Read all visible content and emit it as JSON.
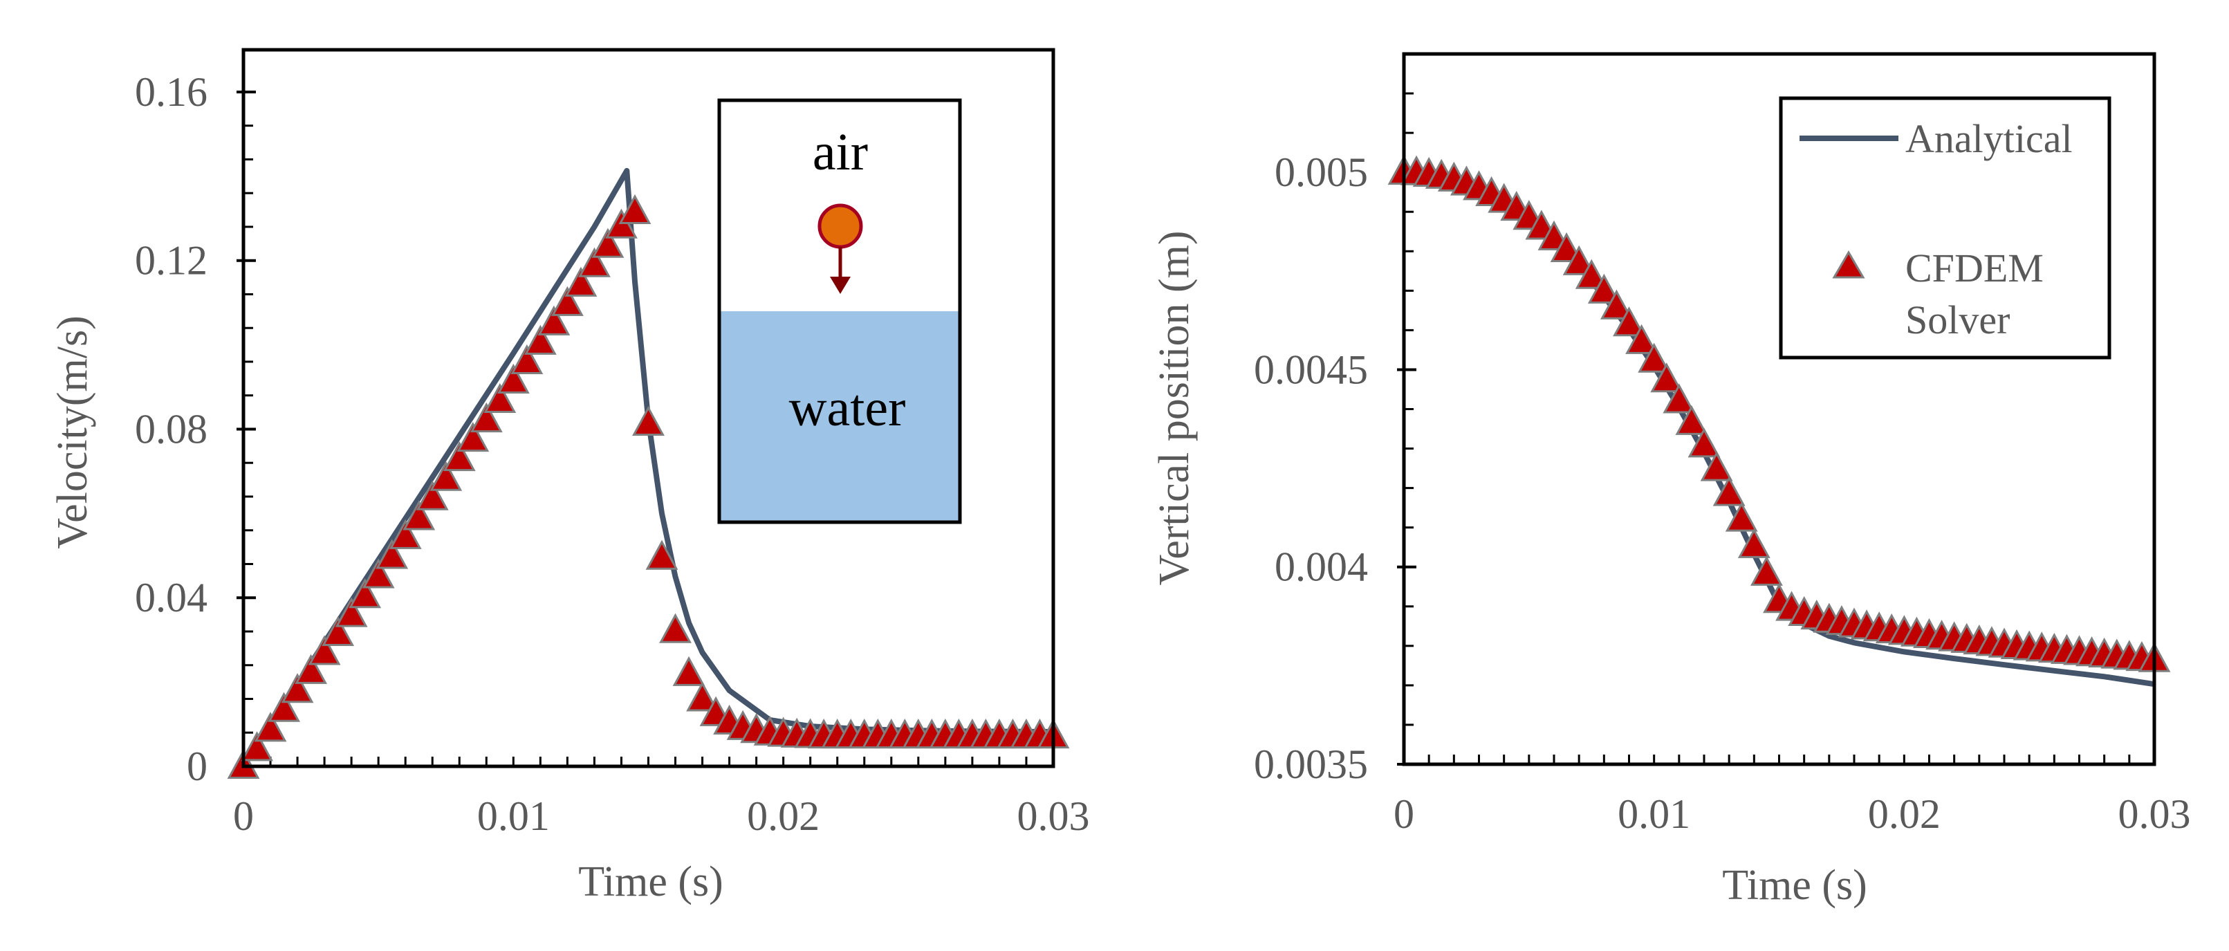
{
  "colors": {
    "analytical_line": "#44546a",
    "marker_fill": "#c00000",
    "marker_stroke": "#7f7f7f",
    "axis_frame": "#000000",
    "water": "#9dc3e6",
    "ball_fill": "#e36c09",
    "ball_stroke": "#c00000",
    "arrow": "#7f0000"
  },
  "chart_data": [
    {
      "id": "velocity",
      "type": "line+scatter",
      "xlabel": "Time (s)",
      "ylabel": "Velocity(m/s)",
      "xlim": [
        0,
        0.03
      ],
      "ylim": [
        0,
        0.17
      ],
      "xticks": [
        0,
        0.01,
        0.02,
        0.03
      ],
      "xtick_labels": [
        "0",
        "0.01",
        "0.02",
        "0.03"
      ],
      "yticks": [
        0,
        0.04,
        0.08,
        0.12,
        0.16
      ],
      "ytick_labels": [
        "0",
        "0.04",
        "0.08",
        "0.12",
        "0.16"
      ],
      "x_minor_step": 0.001,
      "y_minor_step": 0.008,
      "series": [
        {
          "name": "Analytical",
          "kind": "line",
          "x": [
            0,
            0.002,
            0.004,
            0.006,
            0.008,
            0.01,
            0.011,
            0.012,
            0.013,
            0.0142,
            0.0145,
            0.015,
            0.0155,
            0.016,
            0.0165,
            0.017,
            0.018,
            0.0195,
            0.021,
            0.023,
            0.025,
            0.027,
            0.03
          ],
          "y": [
            0,
            0.0196,
            0.0392,
            0.0588,
            0.0784,
            0.098,
            0.108,
            0.118,
            0.128,
            0.1413,
            0.115,
            0.082,
            0.06,
            0.045,
            0.034,
            0.027,
            0.018,
            0.011,
            0.0095,
            0.0088,
            0.0085,
            0.0083,
            0.0082
          ]
        },
        {
          "name": "CFDEM Solver",
          "kind": "marker",
          "x": [
            0,
            0.0005,
            0.001,
            0.0015,
            0.002,
            0.0025,
            0.003,
            0.0035,
            0.004,
            0.0045,
            0.005,
            0.0055,
            0.006,
            0.0065,
            0.007,
            0.0075,
            0.008,
            0.0085,
            0.009,
            0.0095,
            0.01,
            0.0105,
            0.011,
            0.0115,
            0.012,
            0.0125,
            0.013,
            0.0135,
            0.014,
            0.0145,
            0.015,
            0.0155,
            0.016,
            0.0165,
            0.017,
            0.0175,
            0.018,
            0.0185,
            0.019,
            0.0195,
            0.02,
            0.0205,
            0.021,
            0.0215,
            0.022,
            0.0225,
            0.023,
            0.0235,
            0.024,
            0.0245,
            0.025,
            0.0255,
            0.026,
            0.0265,
            0.027,
            0.0275,
            0.028,
            0.0285,
            0.029,
            0.0295,
            0.03
          ],
          "y": [
            0,
            0.0042,
            0.0088,
            0.0135,
            0.018,
            0.0225,
            0.027,
            0.0315,
            0.036,
            0.0405,
            0.0452,
            0.0498,
            0.0545,
            0.059,
            0.0637,
            0.0683,
            0.073,
            0.0776,
            0.0822,
            0.0868,
            0.0914,
            0.096,
            0.1006,
            0.1052,
            0.1098,
            0.1144,
            0.119,
            0.1236,
            0.1282,
            0.1316,
            0.0814,
            0.0496,
            0.0322,
            0.022,
            0.016,
            0.0125,
            0.0105,
            0.0092,
            0.0085,
            0.0079,
            0.0076,
            0.0074,
            0.0073,
            0.0072,
            0.0072,
            0.0072,
            0.0072,
            0.0072,
            0.0072,
            0.0072,
            0.0072,
            0.0072,
            0.0072,
            0.0072,
            0.0072,
            0.0072,
            0.0072,
            0.0072,
            0.0072,
            0.0072,
            0.0072
          ]
        }
      ],
      "inset": {
        "air_label": "air",
        "water_label": "water"
      }
    },
    {
      "id": "position",
      "type": "line+scatter",
      "xlabel": "Time (s)",
      "ylabel": "Vertical position (m)",
      "xlim": [
        0,
        0.03
      ],
      "ylim": [
        0.0035,
        0.0053
      ],
      "xticks": [
        0,
        0.01,
        0.02,
        0.03
      ],
      "xtick_labels": [
        "0",
        "0.01",
        "0.02",
        "0.03"
      ],
      "yticks": [
        0.0035,
        0.004,
        0.0045,
        0.005
      ],
      "ytick_labels": [
        "0.0035",
        "0.004",
        "0.0045",
        "0.005"
      ],
      "x_minor_step": 0.001,
      "y_minor_step": 0.0001,
      "legend": {
        "position": "top-right",
        "entries": [
          {
            "label": "Analytical",
            "kind": "line"
          },
          {
            "label_lines": [
              "CFDEM",
              "Solver"
            ],
            "kind": "marker"
          }
        ]
      },
      "series": [
        {
          "name": "Analytical",
          "kind": "line",
          "x": [
            0,
            0.001,
            0.002,
            0.003,
            0.004,
            0.005,
            0.006,
            0.007,
            0.008,
            0.009,
            0.01,
            0.011,
            0.012,
            0.013,
            0.014,
            0.015,
            0.016,
            0.017,
            0.018,
            0.02,
            0.022,
            0.024,
            0.026,
            0.028,
            0.03
          ],
          "y": [
            0.005,
            0.004996,
            0.00498,
            0.004956,
            0.004922,
            0.004878,
            0.004824,
            0.00476,
            0.004686,
            0.004602,
            0.004508,
            0.004404,
            0.00429,
            0.004166,
            0.004032,
            0.003905,
            0.003855,
            0.003825,
            0.003808,
            0.003785,
            0.003768,
            0.003752,
            0.003737,
            0.003722,
            0.003703
          ]
        },
        {
          "name": "CFDEM Solver",
          "kind": "marker",
          "x": [
            0,
            0.0005,
            0.001,
            0.0015,
            0.002,
            0.0025,
            0.003,
            0.0035,
            0.004,
            0.0045,
            0.005,
            0.0055,
            0.006,
            0.0065,
            0.007,
            0.0075,
            0.008,
            0.0085,
            0.009,
            0.0095,
            0.01,
            0.0105,
            0.011,
            0.0115,
            0.012,
            0.0125,
            0.013,
            0.0135,
            0.014,
            0.0145,
            0.015,
            0.0155,
            0.016,
            0.0165,
            0.017,
            0.0175,
            0.018,
            0.0185,
            0.019,
            0.0195,
            0.02,
            0.0205,
            0.021,
            0.0215,
            0.022,
            0.0225,
            0.023,
            0.0235,
            0.024,
            0.0245,
            0.025,
            0.0255,
            0.026,
            0.0265,
            0.027,
            0.0275,
            0.028,
            0.0285,
            0.029,
            0.0295,
            0.03
          ],
          "y": [
            0.005,
            0.004999,
            0.004995,
            0.00499,
            0.004983,
            0.004973,
            0.004961,
            0.004946,
            0.004929,
            0.004909,
            0.004886,
            0.004861,
            0.004834,
            0.004804,
            0.004771,
            0.004736,
            0.004699,
            0.004659,
            0.004616,
            0.004571,
            0.004524,
            0.004474,
            0.004421,
            0.004366,
            0.004309,
            0.004249,
            0.004186,
            0.004121,
            0.004054,
            0.003984,
            0.003915,
            0.003895,
            0.003882,
            0.003873,
            0.003865,
            0.003859,
            0.003853,
            0.003848,
            0.003843,
            0.003838,
            0.003834,
            0.00383,
            0.003826,
            0.003822,
            0.003818,
            0.003814,
            0.00381,
            0.003806,
            0.003802,
            0.003798,
            0.003795,
            0.003792,
            0.003789,
            0.003786,
            0.003783,
            0.00378,
            0.003777,
            0.003774,
            0.003771,
            0.003768,
            0.003765
          ]
        }
      ]
    }
  ]
}
